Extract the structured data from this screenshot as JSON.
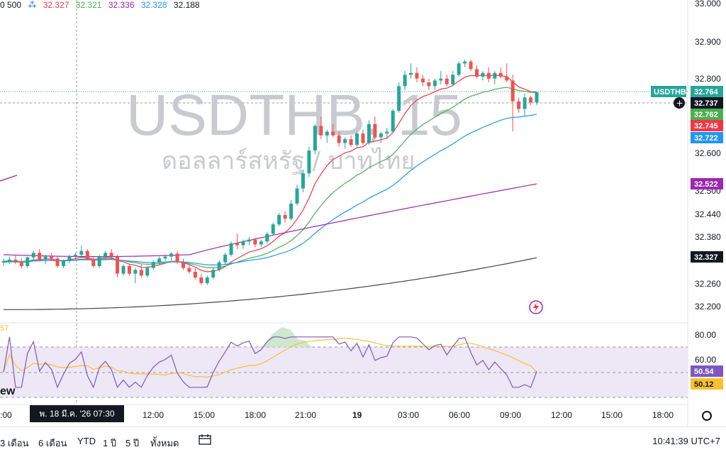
{
  "symbol": {
    "ticker": "USDTHB, 15",
    "description": "ดอลลาร์สหรัฐ / บาทไทย"
  },
  "indicator_header": {
    "period": "0 500",
    "values": [
      {
        "text": "32.327",
        "color": "#f23645"
      },
      {
        "text": "32.321",
        "color": "#4caf50"
      },
      {
        "text": "32.336",
        "color": "#9c27b0"
      },
      {
        "text": "32.328",
        "color": "#2196f3"
      },
      {
        "text": "32.188",
        "color": "#131722"
      }
    ]
  },
  "colors": {
    "up": "#26a69a",
    "down": "#ef5350",
    "ema_red": "#f23645",
    "ema_green": "#4caf50",
    "ema_blue": "#2196f3",
    "ema_purple": "#9c27b0",
    "ema_black": "#434651",
    "rsi": "#7e57c2",
    "rsi_ma": "#fbc02d",
    "rsi_band": "#ede7f6",
    "watermark": "#c8cad0"
  },
  "price_axis": {
    "labels": [
      "33.000",
      "32.900",
      "32.800",
      "32.600",
      "32.500",
      "32.440",
      "32.380",
      "32.260",
      "32.200"
    ]
  },
  "price_tags": [
    {
      "text": "USDTHB",
      "value": "32.764",
      "color": "#26a69a"
    },
    {
      "text": "32.737",
      "color": "#131722"
    },
    {
      "text": "32.762",
      "color": "#4caf50"
    },
    {
      "text": "32.745",
      "color": "#f23645"
    },
    {
      "text": "32.722",
      "color": "#2196f3"
    },
    {
      "text": "32.522",
      "color": "#9c27b0"
    },
    {
      "text": "32.327",
      "color": "#131722"
    }
  ],
  "rsi_axis": {
    "labels": [
      "80.00",
      "60.00"
    ],
    "tags": [
      {
        "text": "50.54",
        "color": "#7e57c2"
      },
      {
        "text": "50.12",
        "color": "#fbc02d"
      }
    ]
  },
  "time_axis": {
    "labels": [
      ":00",
      "12:00",
      "15:00",
      "18:00",
      "21:00",
      "19",
      "03:00",
      "06:00",
      "09:00",
      "12:00",
      "15:00",
      "18:00"
    ]
  },
  "crosshair_date": "พ. 18 มี.ค. '26   07:30",
  "range_buttons": [
    "3 เดือน",
    "6 เดือน",
    "YTD",
    "1 ปี",
    "5 ปี",
    "ทั้งหมด"
  ],
  "clock": "10:41:39 UTC+7",
  "side_fragments": {
    "rsi_left": "57",
    "logo_left": "ew"
  },
  "chart_data": {
    "type": "candlestick",
    "title": "USDTHB, 15",
    "ylim": [
      32.15,
      33.0
    ],
    "candles": [
      [
        32.315,
        32.325,
        32.305,
        32.318
      ],
      [
        32.318,
        32.33,
        32.31,
        32.322
      ],
      [
        32.322,
        32.332,
        32.31,
        32.315
      ],
      [
        32.315,
        32.325,
        32.298,
        32.305
      ],
      [
        32.305,
        32.33,
        32.3,
        32.328
      ],
      [
        32.328,
        32.345,
        32.32,
        32.34
      ],
      [
        32.34,
        32.35,
        32.318,
        32.322
      ],
      [
        32.322,
        32.335,
        32.31,
        32.33
      ],
      [
        32.33,
        32.34,
        32.318,
        32.325
      ],
      [
        32.325,
        32.332,
        32.3,
        32.305
      ],
      [
        32.305,
        32.322,
        32.3,
        32.318
      ],
      [
        32.318,
        32.335,
        32.312,
        32.33
      ],
      [
        32.33,
        32.34,
        32.32,
        32.335
      ],
      [
        32.335,
        32.36,
        32.33,
        32.345
      ],
      [
        32.345,
        32.35,
        32.32,
        32.322
      ],
      [
        32.322,
        32.33,
        32.3,
        32.305
      ],
      [
        32.305,
        32.335,
        32.3,
        32.33
      ],
      [
        32.33,
        32.345,
        32.32,
        32.34
      ],
      [
        32.34,
        32.35,
        32.325,
        32.33
      ],
      [
        32.33,
        32.335,
        32.275,
        32.285
      ],
      [
        32.285,
        32.31,
        32.28,
        32.305
      ],
      [
        32.305,
        32.31,
        32.28,
        32.285
      ],
      [
        32.285,
        32.3,
        32.26,
        32.295
      ],
      [
        32.295,
        32.31,
        32.275,
        32.28
      ],
      [
        32.28,
        32.305,
        32.275,
        32.3
      ],
      [
        32.3,
        32.32,
        32.295,
        32.315
      ],
      [
        32.315,
        32.33,
        32.31,
        32.325
      ],
      [
        32.325,
        32.335,
        32.318,
        32.33
      ],
      [
        32.33,
        32.342,
        32.32,
        32.338
      ],
      [
        32.338,
        32.345,
        32.31,
        32.315
      ],
      [
        32.315,
        32.325,
        32.295,
        32.3
      ],
      [
        32.3,
        32.31,
        32.285,
        32.29
      ],
      [
        32.29,
        32.3,
        32.27,
        32.275
      ],
      [
        32.275,
        32.285,
        32.255,
        32.26
      ],
      [
        32.26,
        32.28,
        32.255,
        32.275
      ],
      [
        32.275,
        32.3,
        32.27,
        32.295
      ],
      [
        32.295,
        32.32,
        32.29,
        32.315
      ],
      [
        32.315,
        32.34,
        32.31,
        32.335
      ],
      [
        32.335,
        32.37,
        32.33,
        32.365
      ],
      [
        32.365,
        32.39,
        32.35,
        32.36
      ],
      [
        32.36,
        32.375,
        32.35,
        32.37
      ],
      [
        32.37,
        32.382,
        32.36,
        32.375
      ],
      [
        32.375,
        32.38,
        32.355,
        32.362
      ],
      [
        32.362,
        32.375,
        32.355,
        32.37
      ],
      [
        32.37,
        32.395,
        32.365,
        32.39
      ],
      [
        32.39,
        32.42,
        32.385,
        32.415
      ],
      [
        32.415,
        32.445,
        32.41,
        32.44
      ],
      [
        32.44,
        32.45,
        32.42,
        32.43
      ],
      [
        32.43,
        32.48,
        32.425,
        32.47
      ],
      [
        32.47,
        32.52,
        32.465,
        32.51
      ],
      [
        32.51,
        32.56,
        32.5,
        32.55
      ],
      [
        32.55,
        32.62,
        32.54,
        32.61
      ],
      [
        32.61,
        32.68,
        32.6,
        32.675
      ],
      [
        32.675,
        32.7,
        32.64,
        32.65
      ],
      [
        32.65,
        32.665,
        32.63,
        32.66
      ],
      [
        32.66,
        32.68,
        32.645,
        32.65
      ],
      [
        32.65,
        32.66,
        32.62,
        32.63
      ],
      [
        32.63,
        32.645,
        32.615,
        32.64
      ],
      [
        32.64,
        32.65,
        32.62,
        32.625
      ],
      [
        32.625,
        32.66,
        32.62,
        32.655
      ],
      [
        32.655,
        32.665,
        32.625,
        32.63
      ],
      [
        32.63,
        32.69,
        32.625,
        32.68
      ],
      [
        32.68,
        32.7,
        32.64,
        32.645
      ],
      [
        32.645,
        32.66,
        32.63,
        32.655
      ],
      [
        32.655,
        32.67,
        32.64,
        32.66
      ],
      [
        32.66,
        32.72,
        32.655,
        32.715
      ],
      [
        32.715,
        32.79,
        32.71,
        32.78
      ],
      [
        32.78,
        32.82,
        32.77,
        32.81
      ],
      [
        32.81,
        32.84,
        32.8,
        32.815
      ],
      [
        32.815,
        32.83,
        32.79,
        32.8
      ],
      [
        32.8,
        32.81,
        32.78,
        32.79
      ],
      [
        32.79,
        32.8,
        32.77,
        32.78
      ],
      [
        32.78,
        32.8,
        32.77,
        32.795
      ],
      [
        32.795,
        32.82,
        32.785,
        32.8
      ],
      [
        32.8,
        32.81,
        32.78,
        32.785
      ],
      [
        32.785,
        32.82,
        32.78,
        32.81
      ],
      [
        32.81,
        32.845,
        32.805,
        32.84
      ],
      [
        32.84,
        32.85,
        32.83,
        32.845
      ],
      [
        32.845,
        32.85,
        32.82,
        32.825
      ],
      [
        32.825,
        32.835,
        32.8,
        32.805
      ],
      [
        32.805,
        32.82,
        32.795,
        32.815
      ],
      [
        32.815,
        32.83,
        32.79,
        32.8
      ],
      [
        32.8,
        32.82,
        32.785,
        32.815
      ],
      [
        32.815,
        32.83,
        32.8,
        32.805
      ],
      [
        32.805,
        32.84,
        32.79,
        32.795
      ],
      [
        32.795,
        32.81,
        32.66,
        32.74
      ],
      [
        32.74,
        32.75,
        32.71,
        32.72
      ],
      [
        32.72,
        32.76,
        32.7,
        32.75
      ],
      [
        32.75,
        32.755,
        32.73,
        32.737
      ],
      [
        32.737,
        32.765,
        32.73,
        32.764
      ]
    ],
    "ema_red_last": 32.745,
    "ema_green_last": 32.762,
    "ema_blue_last": 32.722,
    "ema_purple_last": 32.522,
    "ema_black_last": 32.327,
    "rsi_last": 50.54,
    "rsi_ma_last": 50.12
  }
}
